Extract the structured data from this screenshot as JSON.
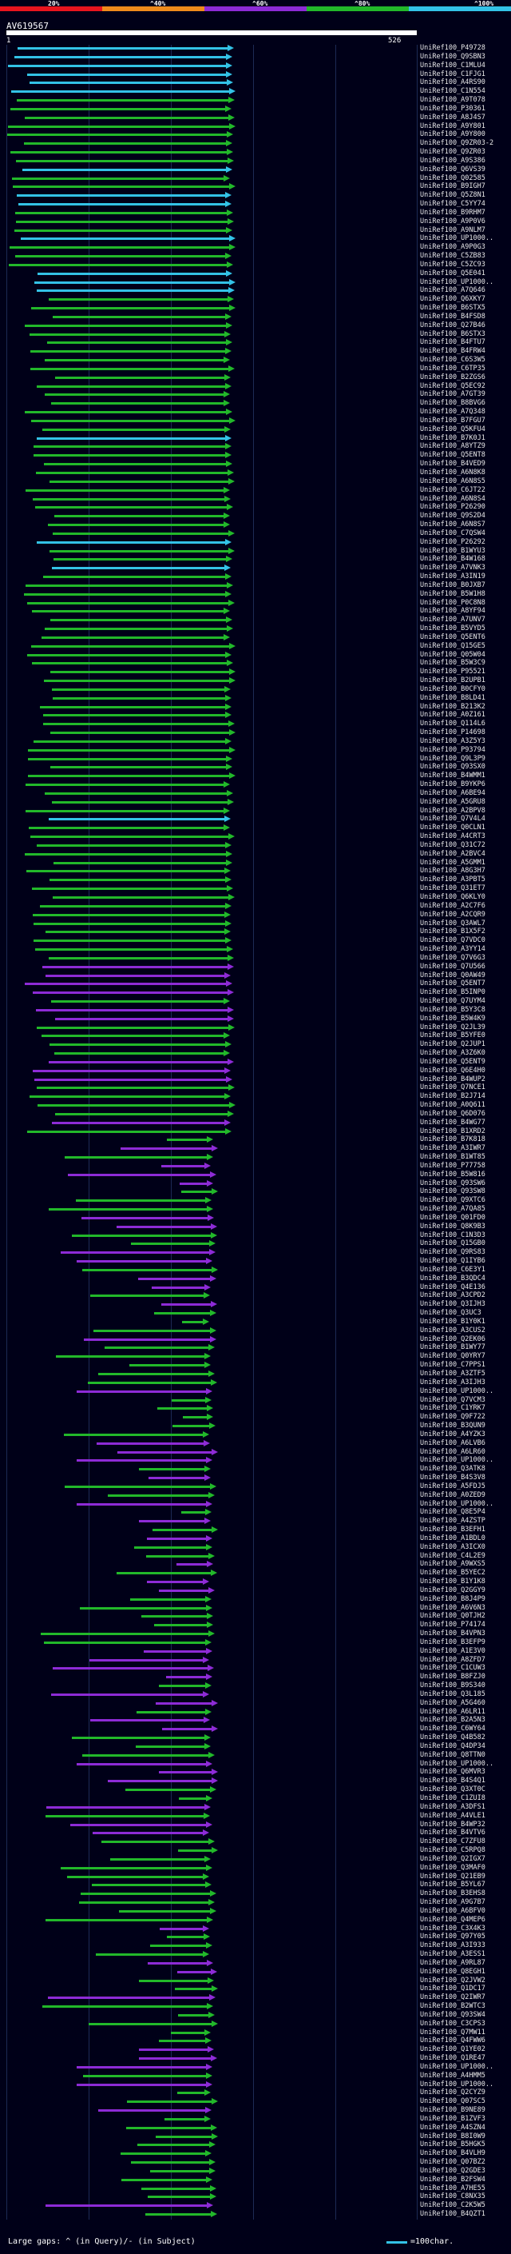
{
  "scale": {
    "labels": [
      "20%",
      "^40%",
      "^60%",
      "^80%",
      "^100%"
    ],
    "colors": [
      "#e8141e",
      "#ef8a1c",
      "#8d2bd6",
      "#22b82a",
      "#33c2e6"
    ]
  },
  "query": {
    "id": "AV619567",
    "start": "1",
    "end": "526"
  },
  "hits": [
    "UniRef100_P49728",
    "UniRef100_Q9SBN3",
    "UniRef100_C1MLU4",
    "UniRef100_C1FJG1",
    "UniRef100_A4RS90",
    "UniRef100_C1N554",
    "UniRef100_A9T078",
    "UniRef100_P30361",
    "UniRef100_A8J4S7",
    "UniRef100_A9Y801",
    "UniRef100_A9Y800",
    "UniRef100_Q9ZR03-2",
    "UniRef100_Q9ZR03",
    "UniRef100_A9S386",
    "UniRef100_Q6VS39",
    "UniRef100_Q02585",
    "UniRef100_B9IGH7",
    "UniRef100_Q5Z8N1",
    "UniRef100_C5YY74",
    "UniRef100_B9RHM7",
    "UniRef100_A9P0V6",
    "UniRef100_A9NLM7",
    "UniRef100_UP1000..",
    "UniRef100_A9P0G3",
    "UniRef100_C5ZB83",
    "UniRef100_C5ZC93",
    "UniRef100_Q5E041",
    "UniRef100_UP1000..",
    "UniRef100_A7Q646",
    "UniRef100_Q6XKY7",
    "UniRef100_B6STX5",
    "UniRef100_B4FSD8",
    "UniRef100_Q27B46",
    "UniRef100_B6STX3",
    "UniRef100_B4FTU7",
    "UniRef100_B4FRW4",
    "UniRef100_C6S3W5",
    "UniRef100_C6TP35",
    "UniRef100_B2ZGS6",
    "UniRef100_Q5EC92",
    "UniRef100_A7GT39",
    "UniRef100_B8BVG6",
    "UniRef100_A7Q348",
    "UniRef100_B7FGU7",
    "UniRef100_Q5KFU4",
    "UniRef100_B7K0J1",
    "UniRef100_A8YTZ9",
    "UniRef100_Q5ENT8",
    "UniRef100_B4VED9",
    "UniRef100_A6N8K8",
    "UniRef100_A6N8S5",
    "UniRef100_C6JT22",
    "UniRef100_A6N8S4",
    "UniRef100_P26290",
    "UniRef100_Q9S2D4",
    "UniRef100_A6N8S7",
    "UniRef100_C7QSW4",
    "UniRef100_P26292",
    "UniRef100_B1WYU3",
    "UniRef100_B4W168",
    "UniRef100_A7VNK3",
    "UniRef100_A3IN19",
    "UniRef100_B0JXB7",
    "UniRef100_B5W1H8",
    "UniRef100_P0C8N8",
    "UniRef100_A8YF94",
    "UniRef100_A7UNV7",
    "UniRef100_B5VYD5",
    "UniRef100_Q5ENT6",
    "UniRef100_Q15GE5",
    "UniRef100_Q05W04",
    "UniRef100_B5W3C9",
    "UniRef100_P95521",
    "UniRef100_B2UPB1",
    "UniRef100_B0CFY0",
    "UniRef100_B8LD41",
    "UniRef100_B213K2",
    "UniRef100_A0Z161",
    "UniRef100_Q114L6",
    "UniRef100_P14698",
    "UniRef100_A3Z5Y3",
    "UniRef100_P93794",
    "UniRef100_Q9L3P9",
    "UniRef100_Q93SX0",
    "UniRef100_B4WMM1",
    "UniRef100_B9YKP6",
    "UniRef100_A6BE94",
    "UniRef100_A5GRU8",
    "UniRef100_A2BPV8",
    "UniRef100_Q7V4L4",
    "UniRef100_Q0CLN1",
    "UniRef100_A4CRT3",
    "UniRef100_Q31C72",
    "UniRef100_A2BVC4",
    "UniRef100_A5GMM1",
    "UniRef100_A8G3H7",
    "UniRef100_A3PBT5",
    "UniRef100_Q31ET7",
    "UniRef100_Q6KLY0",
    "UniRef100_A2C7F6",
    "UniRef100_A2CQR9",
    "UniRef100_Q3AWL7",
    "UniRef100_B1X5F2",
    "UniRef100_Q7VDC0",
    "UniRef100_A3YY14",
    "UniRef100_Q7V6G3",
    "UniRef100_Q7U566",
    "UniRef100_Q0AW49",
    "UniRef100_Q5ENT7",
    "UniRef100_B5INP0",
    "UniRef100_Q7UYM4",
    "UniRef100_B5Y3C8",
    "UniRef100_B5W4K9",
    "UniRef100_Q2JL39",
    "UniRef100_B5YFE0",
    "UniRef100_Q2JUP1",
    "UniRef100_A3Z6K0",
    "UniRef100_Q5ENT9",
    "UniRef100_Q6E4H0",
    "UniRef100_B4WUP2",
    "UniRef100_Q7NCE1",
    "UniRef100_B2J714",
    "UniRef100_A0Q611",
    "UniRef100_Q6D076",
    "UniRef100_B4WG77",
    "UniRef100_B1XRD2",
    "UniRef100_B7K818",
    "UniRef100_A3IWR7",
    "UniRef100_B1WT85",
    "UniRef100_P77758",
    "UniRef100_B5W816",
    "UniRef100_Q93SW6",
    "UniRef100_Q93SW8",
    "UniRef100_Q9XTC6",
    "UniRef100_A7QA85",
    "UniRef100_Q01FD0",
    "UniRef100_Q8K9B3",
    "UniRef100_C1N3D3",
    "UniRef100_Q15GB0",
    "UniRef100_Q9RS83",
    "UniRef100_Q1IYB6",
    "UniRef100_C6E3Y1",
    "UniRef100_B3QDC4",
    "UniRef100_Q4E136",
    "UniRef100_A3CPD2",
    "UniRef100_Q3IJH3",
    "UniRef100_Q3UC3",
    "UniRef100_B1Y0K1",
    "UniRef100_A3CUS2",
    "UniRef100_Q2EK06",
    "UniRef100_B1WY77",
    "UniRef100_Q0YRY7",
    "UniRef100_C7PPS1",
    "UniRef100_A3ZTF5",
    "UniRef100_A3IJH3",
    "UniRef100_UP1000..",
    "UniRef100_Q7VCM3",
    "UniRef100_C1YRK7",
    "UniRef100_Q9F722",
    "UniRef100_B3QUN9",
    "UniRef100_A4YZK3",
    "UniRef100_A6LVB6",
    "UniRef100_A6LR60",
    "UniRef100_UP1000..",
    "UniRef100_Q3ATK8",
    "UniRef100_B4S3V8",
    "UniRef100_A5FDJ5",
    "UniRef100_A0ZED9",
    "UniRef100_UP1000..",
    "UniRef100_Q8E5P4",
    "UniRef100_A4ZSTP",
    "UniRef100_B3EFH1",
    "UniRef100_A1BDL0",
    "UniRef100_A3ICX0",
    "UniRef100_C4L2E9",
    "UniRef100_A9WXS5",
    "UniRef100_B5YEC2",
    "UniRef100_B1Y1K8",
    "UniRef100_Q2GGY9",
    "UniRef100_B8J4P9",
    "UniRef100_A6V6N3",
    "UniRef100_Q0TJH2",
    "UniRef100_P74174",
    "UniRef100_B4VPN3",
    "UniRef100_B3EFP9",
    "UniRef100_A1E3V0",
    "UniRef100_A8ZFD7",
    "UniRef100_C1CUW3",
    "UniRef100_B8FZJ0",
    "UniRef100_B9S340",
    "UniRef100_Q3L185",
    "UniRef100_A5G460",
    "UniRef100_A6LR11",
    "UniRef100_B2A5N3",
    "UniRef100_C6WY64",
    "UniRef100_Q4B582",
    "UniRef100_Q4DP34",
    "UniRef100_Q8TTN0",
    "UniRef100_UP1000..",
    "UniRef100_Q6MVR3",
    "UniRef100_B4S4Q1",
    "UniRef100_Q3XT0C",
    "UniRef100_C1ZUI8",
    "UniRef100_A3DFS1",
    "UniRef100_A4VLE1",
    "UniRef100_B4WP32",
    "UniRef100_B4VTV6",
    "UniRef100_C7ZFU8",
    "UniRef100_C5RPQ8",
    "UniRef100_Q2IGX7",
    "UniRef100_Q3MAF0",
    "UniRef100_Q21EB9",
    "UniRef100_B5YL67",
    "UniRef100_B3EHS8",
    "UniRef100_A9G7B7",
    "UniRef100_A6BFV0",
    "UniRef100_Q4MEP6",
    "UniRef100_C3X4K3",
    "UniRef100_Q97Y05",
    "UniRef100_A3I933",
    "UniRef100_A3ESS1",
    "UniRef100_A9RL87",
    "UniRef100_Q8EGH1",
    "UniRef100_Q2JVW2",
    "UniRef100_Q1DC17",
    "UniRef100_Q2IWR7",
    "UniRef100_B2WTC3",
    "UniRef100_Q93SW4",
    "UniRef100_C3CPS3",
    "UniRef100_Q7MW11",
    "UniRef100_Q4FWW6",
    "UniRef100_Q1YE02",
    "UniRef100_Q1RE47",
    "UniRef100_UP1000..",
    "UniRef100_A4HMM5",
    "UniRef100_UP1000..",
    "UniRef100_Q2CYZ9",
    "UniRef100_Q07SC5",
    "UniRef100_B9NE89",
    "UniRef100_B1ZVF3",
    "UniRef100_A4SZN4",
    "UniRef100_B8I0W9",
    "UniRef100_B5HGK5",
    "UniRef100_B4VLH9",
    "UniRef100_Q07BZ2",
    "UniRef100_Q2GDE3",
    "UniRef100_B2FSW4",
    "UniRef100_A7HE55",
    "UniRef100_C8NX35",
    "UniRef100_C2K5W5",
    "UniRef100_B4QZT1"
  ],
  "legend": {
    "text": "Large gaps: ^ (in Query)/- (in Subject)",
    "line_label": "=100char."
  }
}
